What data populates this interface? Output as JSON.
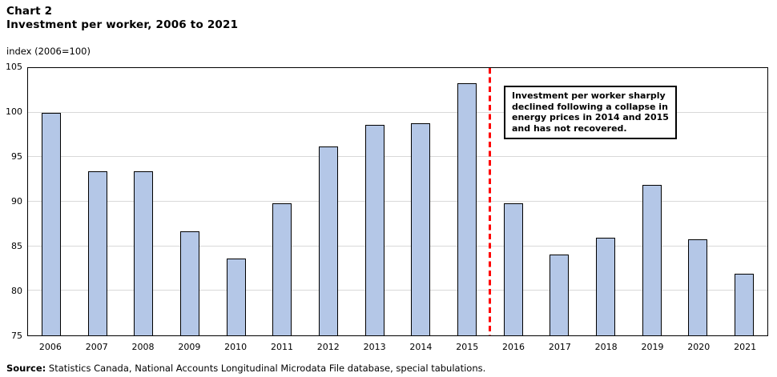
{
  "header": {
    "chart_label": "Chart 2",
    "title": "Investment per worker, 2006 to 2021",
    "axis_unit": "index (2006=100)"
  },
  "chart_data": {
    "type": "bar",
    "title": "Investment per worker, 2006 to 2021",
    "categories": [
      "2006",
      "2007",
      "2008",
      "2009",
      "2010",
      "2011",
      "2012",
      "2013",
      "2014",
      "2015",
      "2016",
      "2017",
      "2018",
      "2019",
      "2020",
      "2021"
    ],
    "values": [
      100.0,
      93.4,
      93.4,
      86.7,
      83.6,
      89.8,
      96.2,
      98.6,
      98.8,
      103.3,
      89.8,
      84.1,
      86.0,
      91.9,
      85.8,
      81.9
    ],
    "xlabel": "",
    "ylabel": "index (2006=100)",
    "ylim": [
      75,
      105
    ],
    "yticks": [
      75,
      80,
      85,
      90,
      95,
      100,
      105
    ],
    "grid": "horizontal",
    "gridline_color": "#d9d9d9",
    "bar_color": "#b4c7e7",
    "bar_border_color": "#000000",
    "divider": {
      "after_category": "2015",
      "color": "#ff0000",
      "style": "dashed"
    },
    "annotation": {
      "text": "Investment per worker sharply declined following a collapse in energy prices in 2014 and 2015 and has not recovered.",
      "lines": [
        "Investment per worker sharply",
        "declined following a collapse in",
        "energy prices in 2014 and 2015",
        "and has not recovered."
      ]
    }
  },
  "source": {
    "label": "Source:",
    "text": " Statistics Canada, National Accounts Longitudinal Microdata File database, special tabulations."
  }
}
